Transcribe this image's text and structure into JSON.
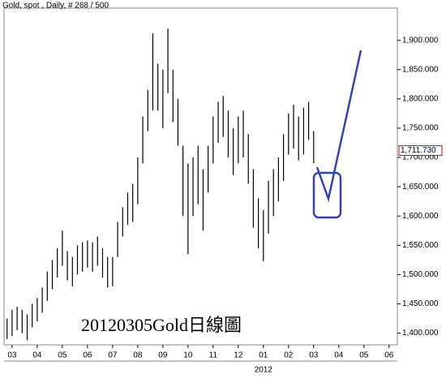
{
  "chart_data": {
    "type": "ohlc",
    "title": "Gold, spot , Daily, # 268 / 500",
    "annotation": "20120305Gold日線圖",
    "color": "#000000",
    "x": [
      -0.2,
      0,
      0.2,
      0.4,
      0.6,
      0.8,
      1.0,
      1.2,
      1.4,
      1.6,
      1.8,
      2.0,
      2.2,
      2.4,
      2.6,
      2.8,
      3.0,
      3.2,
      3.4,
      3.6,
      3.8,
      4.0,
      4.2,
      4.4,
      4.6,
      4.8,
      5.0,
      5.2,
      5.4,
      5.6,
      5.8,
      6.0,
      6.2,
      6.4,
      6.6,
      6.8,
      7.0,
      7.2,
      7.4,
      7.6,
      7.8,
      8.0,
      8.2,
      8.4,
      8.6,
      8.8,
      9.0,
      9.2,
      9.4,
      9.6,
      9.8,
      10.0,
      10.2,
      10.4,
      10.6,
      10.8,
      11.0,
      11.2,
      11.4,
      11.6,
      11.8,
      12.0
    ],
    "high": [
      1425,
      1440,
      1445,
      1440,
      1432,
      1450,
      1460,
      1478,
      1505,
      1525,
      1545,
      1575,
      1540,
      1530,
      1550,
      1555,
      1558,
      1555,
      1565,
      1545,
      1530,
      1530,
      1590,
      1615,
      1640,
      1655,
      1700,
      1770,
      1815,
      1912,
      1860,
      1850,
      1920,
      1850,
      1800,
      1720,
      1690,
      1700,
      1720,
      1680,
      1720,
      1770,
      1795,
      1805,
      1780,
      1750,
      1770,
      1780,
      1740,
      1680,
      1630,
      1610,
      1660,
      1680,
      1700,
      1740,
      1775,
      1790,
      1770,
      1785,
      1795,
      1745
    ],
    "low": [
      1390,
      1395,
      1405,
      1400,
      1388,
      1410,
      1420,
      1435,
      1455,
      1475,
      1495,
      1515,
      1490,
      1480,
      1500,
      1505,
      1512,
      1505,
      1515,
      1495,
      1478,
      1480,
      1530,
      1565,
      1585,
      1590,
      1620,
      1690,
      1745,
      1780,
      1780,
      1750,
      1810,
      1760,
      1720,
      1600,
      1535,
      1600,
      1620,
      1575,
      1640,
      1690,
      1725,
      1735,
      1700,
      1670,
      1690,
      1700,
      1655,
      1580,
      1545,
      1523,
      1570,
      1600,
      1625,
      1660,
      1705,
      1715,
      1695,
      1705,
      1730,
      1690
    ],
    "xlim": [
      -0.32,
      15.33
    ],
    "ylim": [
      1380,
      1955
    ],
    "yticks": [
      {
        "value": 1400,
        "label": "1,400.000"
      },
      {
        "value": 1450,
        "label": "1,450.000"
      },
      {
        "value": 1500,
        "label": "1,500.000"
      },
      {
        "value": 1550,
        "label": "1,550.000"
      },
      {
        "value": 1600,
        "label": "1,600.000"
      },
      {
        "value": 1650,
        "label": "1,650.000"
      },
      {
        "value": 1700,
        "label": "1,700.000"
      },
      {
        "value": 1750,
        "label": "1,750.000"
      },
      {
        "value": 1800,
        "label": "1,800.000"
      },
      {
        "value": 1850,
        "label": "1,850.000"
      },
      {
        "value": 1900,
        "label": "1,900.000"
      }
    ],
    "xticks": [
      {
        "value": 0,
        "label": "03"
      },
      {
        "value": 1,
        "label": "04"
      },
      {
        "value": 2,
        "label": "05"
      },
      {
        "value": 3,
        "label": "06"
      },
      {
        "value": 4,
        "label": "07"
      },
      {
        "value": 5,
        "label": "08"
      },
      {
        "value": 6,
        "label": "09"
      },
      {
        "value": 7,
        "label": "10"
      },
      {
        "value": 8,
        "label": "11"
      },
      {
        "value": 9,
        "label": "12"
      },
      {
        "value": 10,
        "label": "01"
      },
      {
        "value": 11,
        "label": "02"
      },
      {
        "value": 12,
        "label": "03"
      },
      {
        "value": 13,
        "label": "04"
      },
      {
        "value": 14,
        "label": "05"
      },
      {
        "value": 15,
        "label": "06"
      }
    ],
    "year_label": {
      "value": 10,
      "label": "2012"
    },
    "last_price": {
      "value": 1711.73,
      "label": "1,711.730"
    }
  }
}
